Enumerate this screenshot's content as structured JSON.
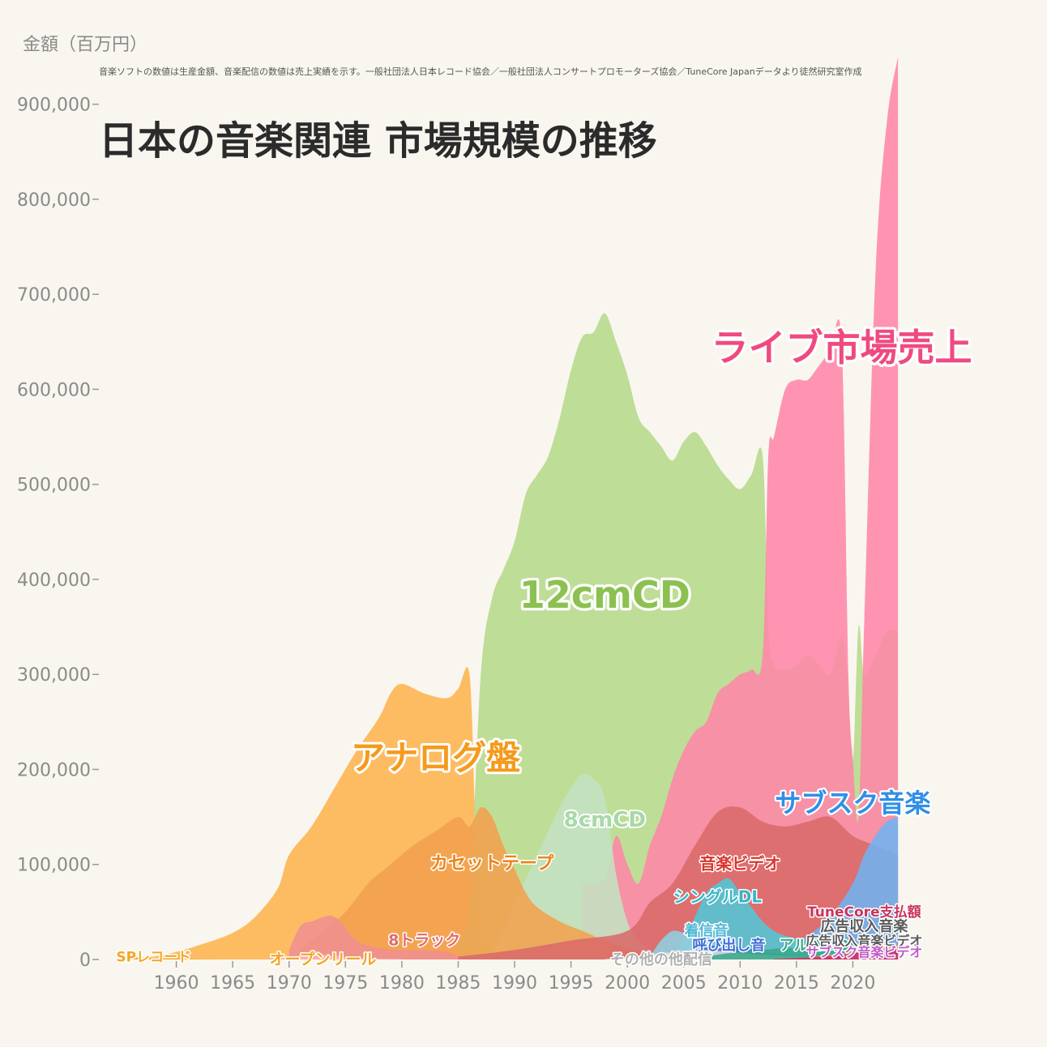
{
  "chart_data": {
    "type": "area",
    "title": "日本の音楽関連 市場規模の推移",
    "subtitle": "音楽ソフトの数値は生産金額、音楽配信の数値は売上実績を示す。一般社団法人日本レコード協会／一般社団法人コンサートプロモーターズ協会／TuneCore Japanデータより徒然研究室作成",
    "ylabel": "金額（百万円）",
    "xlabel": "",
    "xlim": [
      1955,
      2025
    ],
    "ylim": [
      0,
      950000
    ],
    "x_ticks": [
      1960,
      1965,
      1970,
      1975,
      1980,
      1985,
      1990,
      1995,
      2000,
      2005,
      2010,
      2015,
      2020
    ],
    "y_ticks": [
      0,
      100000,
      200000,
      300000,
      400000,
      500000,
      600000,
      700000,
      800000,
      900000
    ],
    "y_tick_labels": [
      "0",
      "100,000",
      "200,000",
      "300,000",
      "400,000",
      "500,000",
      "600,000",
      "700,000",
      "800,000",
      "900,000"
    ],
    "grid": false,
    "legend": "none (direct labels)",
    "series": [
      {
        "name": "アナログ盤",
        "color": "#fdb44e",
        "points": [
          [
            1955,
            0
          ],
          [
            1958,
            3000
          ],
          [
            1960,
            8000
          ],
          [
            1962,
            15000
          ],
          [
            1965,
            28000
          ],
          [
            1967,
            45000
          ],
          [
            1969,
            75000
          ],
          [
            1970,
            110000
          ],
          [
            1972,
            140000
          ],
          [
            1974,
            180000
          ],
          [
            1976,
            220000
          ],
          [
            1978,
            255000
          ],
          [
            1979,
            280000
          ],
          [
            1980,
            290000
          ],
          [
            1982,
            280000
          ],
          [
            1984,
            275000
          ],
          [
            1985,
            285000
          ],
          [
            1986,
            300000
          ],
          [
            1986.5,
            150000
          ],
          [
            1987,
            30000
          ],
          [
            1988,
            15000
          ],
          [
            1990,
            5000
          ],
          [
            1992,
            2000
          ],
          [
            1995,
            1000
          ],
          [
            2000,
            500
          ],
          [
            2010,
            300
          ],
          [
            2020,
            800
          ],
          [
            2024,
            1000
          ]
        ]
      },
      {
        "name": "12cmCD",
        "color": "#b5d98a",
        "points": [
          [
            1985,
            20000
          ],
          [
            1986,
            60000
          ],
          [
            1987,
            300000
          ],
          [
            1988,
            380000
          ],
          [
            1989,
            410000
          ],
          [
            1990,
            440000
          ],
          [
            1991,
            490000
          ],
          [
            1992,
            510000
          ],
          [
            1993,
            530000
          ],
          [
            1994,
            570000
          ],
          [
            1995,
            620000
          ],
          [
            1996,
            655000
          ],
          [
            1997,
            660000
          ],
          [
            1998,
            680000
          ],
          [
            1999,
            650000
          ],
          [
            2000,
            615000
          ],
          [
            2001,
            570000
          ],
          [
            2002,
            555000
          ],
          [
            2003,
            540000
          ],
          [
            2004,
            525000
          ],
          [
            2005,
            545000
          ],
          [
            2006,
            555000
          ],
          [
            2007,
            540000
          ],
          [
            2008,
            520000
          ],
          [
            2009,
            505000
          ],
          [
            2010,
            495000
          ],
          [
            2011,
            510000
          ],
          [
            2012,
            530000
          ],
          [
            2012.5,
            350000
          ],
          [
            2013,
            310000
          ],
          [
            2014,
            305000
          ],
          [
            2015,
            310000
          ],
          [
            2016,
            320000
          ],
          [
            2017,
            310000
          ],
          [
            2018,
            300000
          ],
          [
            2019,
            340000
          ],
          [
            2019.5,
            300000
          ],
          [
            2020,
            210000
          ],
          [
            2020.5,
            350000
          ],
          [
            2021,
            300000
          ],
          [
            2022,
            320000
          ],
          [
            2023,
            345000
          ],
          [
            2024,
            345000
          ]
        ]
      },
      {
        "name": "ライブ市場売上",
        "color": "#fe86a8",
        "points": [
          [
            1996,
            80000
          ],
          [
            1998,
            85000
          ],
          [
            1999,
            130000
          ],
          [
            2000,
            100000
          ],
          [
            2001,
            80000
          ],
          [
            2002,
            120000
          ],
          [
            2003,
            150000
          ],
          [
            2004,
            190000
          ],
          [
            2005,
            220000
          ],
          [
            2006,
            240000
          ],
          [
            2007,
            250000
          ],
          [
            2008,
            280000
          ],
          [
            2009,
            290000
          ],
          [
            2010,
            300000
          ],
          [
            2011,
            305000
          ],
          [
            2012,
            320000
          ],
          [
            2012.5,
            530000
          ],
          [
            2013,
            550000
          ],
          [
            2014,
            600000
          ],
          [
            2015,
            610000
          ],
          [
            2016,
            610000
          ],
          [
            2017,
            625000
          ],
          [
            2018,
            640000
          ],
          [
            2019,
            650000
          ],
          [
            2019.6,
            300000
          ],
          [
            2020,
            210000
          ],
          [
            2020.5,
            150000
          ],
          [
            2021,
            350000
          ],
          [
            2022,
            720000
          ],
          [
            2023,
            880000
          ],
          [
            2024,
            950000
          ]
        ]
      },
      {
        "name": "8cmCD",
        "color": "#c4e1c1",
        "points": [
          [
            1988,
            5000
          ],
          [
            1990,
            60000
          ],
          [
            1992,
            110000
          ],
          [
            1994,
            160000
          ],
          [
            1995,
            180000
          ],
          [
            1996,
            195000
          ],
          [
            1997,
            190000
          ],
          [
            1998,
            170000
          ],
          [
            1999,
            90000
          ],
          [
            2000,
            40000
          ],
          [
            2001,
            20000
          ],
          [
            2002,
            10000
          ],
          [
            2003,
            5000
          ],
          [
            2004,
            2000
          ],
          [
            2006,
            500
          ]
        ]
      },
      {
        "name": "カセットテープ",
        "color": "#f2a14f",
        "points": [
          [
            1971,
            10000
          ],
          [
            1973,
            30000
          ],
          [
            1975,
            50000
          ],
          [
            1977,
            80000
          ],
          [
            1979,
            100000
          ],
          [
            1981,
            120000
          ],
          [
            1983,
            135000
          ],
          [
            1985,
            150000
          ],
          [
            1986,
            140000
          ],
          [
            1987,
            160000
          ],
          [
            1988,
            150000
          ],
          [
            1989,
            120000
          ],
          [
            1990,
            95000
          ],
          [
            1991,
            70000
          ],
          [
            1992,
            55000
          ],
          [
            1994,
            40000
          ],
          [
            1996,
            30000
          ],
          [
            1998,
            20000
          ],
          [
            2000,
            12000
          ],
          [
            2002,
            7000
          ],
          [
            2004,
            3000
          ],
          [
            2006,
            1000
          ]
        ]
      },
      {
        "name": "8トラック",
        "color": "#f08f8f",
        "points": [
          [
            1970,
            10000
          ],
          [
            1971,
            35000
          ],
          [
            1972,
            40000
          ],
          [
            1974,
            45000
          ],
          [
            1976,
            20000
          ],
          [
            1978,
            12000
          ],
          [
            1980,
            10000
          ],
          [
            1982,
            10000
          ],
          [
            1984,
            8000
          ],
          [
            1985,
            4000
          ],
          [
            1986,
            1000
          ]
        ]
      },
      {
        "name": "オープンリール",
        "color": "#ffb0b0",
        "points": [
          [
            1968,
            1000
          ],
          [
            1970,
            3000
          ],
          [
            1972,
            5000
          ],
          [
            1974,
            4000
          ],
          [
            1976,
            2000
          ],
          [
            1978,
            1000
          ],
          [
            1980,
            300
          ]
        ]
      },
      {
        "name": "SPレコード",
        "color": "#f5a623",
        "points": [
          [
            1955,
            3000
          ],
          [
            1957,
            2000
          ],
          [
            1960,
            1000
          ],
          [
            1962,
            300
          ],
          [
            1964,
            0
          ]
        ]
      },
      {
        "name": "音楽ビデオ",
        "color": "#d96a6a",
        "points": [
          [
            1985,
            3000
          ],
          [
            1990,
            10000
          ],
          [
            1995,
            20000
          ],
          [
            2000,
            30000
          ],
          [
            2002,
            60000
          ],
          [
            2004,
            80000
          ],
          [
            2006,
            120000
          ],
          [
            2008,
            155000
          ],
          [
            2010,
            160000
          ],
          [
            2012,
            145000
          ],
          [
            2014,
            140000
          ],
          [
            2016,
            145000
          ],
          [
            2018,
            150000
          ],
          [
            2020,
            130000
          ],
          [
            2022,
            120000
          ],
          [
            2024,
            110000
          ]
        ]
      },
      {
        "name": "サブスク音楽",
        "color": "#6fb4f0",
        "points": [
          [
            2012,
            1000
          ],
          [
            2014,
            10000
          ],
          [
            2016,
            25000
          ],
          [
            2018,
            45000
          ],
          [
            2020,
            80000
          ],
          [
            2021,
            110000
          ],
          [
            2022,
            130000
          ],
          [
            2023,
            145000
          ],
          [
            2024,
            150000
          ]
        ]
      },
      {
        "name": "シングルDL",
        "color": "#52c7d6",
        "points": [
          [
            2004,
            5000
          ],
          [
            2005,
            20000
          ],
          [
            2006,
            45000
          ],
          [
            2007,
            70000
          ],
          [
            2008,
            80000
          ],
          [
            2009,
            85000
          ],
          [
            2010,
            70000
          ],
          [
            2011,
            55000
          ],
          [
            2012,
            40000
          ],
          [
            2013,
            30000
          ],
          [
            2014,
            25000
          ],
          [
            2016,
            20000
          ],
          [
            2018,
            15000
          ],
          [
            2020,
            10000
          ],
          [
            2022,
            8000
          ],
          [
            2024,
            7000
          ]
        ]
      },
      {
        "name": "着信音",
        "color": "#8fd0e0",
        "points": [
          [
            2002,
            3000
          ],
          [
            2003,
            20000
          ],
          [
            2004,
            30000
          ],
          [
            2005,
            28000
          ],
          [
            2006,
            25000
          ],
          [
            2007,
            20000
          ],
          [
            2008,
            15000
          ],
          [
            2009,
            10000
          ],
          [
            2010,
            6000
          ],
          [
            2012,
            2000
          ],
          [
            2014,
            500
          ]
        ]
      },
      {
        "name": "呼び出し音",
        "color": "#3f6fd6",
        "points": [
          [
            2004,
            2000
          ],
          [
            2006,
            10000
          ],
          [
            2008,
            15000
          ],
          [
            2010,
            13000
          ],
          [
            2012,
            8000
          ],
          [
            2014,
            5000
          ],
          [
            2016,
            3000
          ],
          [
            2018,
            1500
          ],
          [
            2020,
            800
          ]
        ]
      },
      {
        "name": "その他の他配信",
        "color": "#dcdcdc",
        "points": [
          [
            1998,
            500
          ],
          [
            2000,
            2000
          ],
          [
            2002,
            5000
          ],
          [
            2004,
            8000
          ],
          [
            2006,
            10000
          ],
          [
            2008,
            9000
          ],
          [
            2010,
            7000
          ],
          [
            2012,
            5000
          ],
          [
            2014,
            4000
          ],
          [
            2016,
            3000
          ],
          [
            2018,
            2500
          ],
          [
            2020,
            2000
          ],
          [
            2022,
            2000
          ],
          [
            2024,
            2000
          ]
        ]
      },
      {
        "name": "アルバムDL",
        "color": "#3aa88a",
        "points": [
          [
            2006,
            1000
          ],
          [
            2008,
            5000
          ],
          [
            2010,
            8000
          ],
          [
            2012,
            10000
          ],
          [
            2014,
            12000
          ],
          [
            2016,
            12000
          ],
          [
            2018,
            11000
          ],
          [
            2020,
            10000
          ],
          [
            2022,
            9000
          ],
          [
            2024,
            8000
          ]
        ]
      },
      {
        "name": "広告収入音楽",
        "color": "#ff9f4a",
        "points": [
          [
            2016,
            2000
          ],
          [
            2018,
            5000
          ],
          [
            2020,
            8000
          ],
          [
            2022,
            12000
          ],
          [
            2024,
            15000
          ]
        ]
      },
      {
        "name": "広告収入音楽ビデオ",
        "color": "#8ab4d9",
        "points": [
          [
            2016,
            1000
          ],
          [
            2018,
            3000
          ],
          [
            2020,
            5000
          ],
          [
            2022,
            7000
          ],
          [
            2024,
            9000
          ]
        ]
      },
      {
        "name": "サブスク音楽ビデオ",
        "color": "#c15ac9",
        "points": [
          [
            2016,
            1000
          ],
          [
            2018,
            3000
          ],
          [
            2020,
            6000
          ],
          [
            2022,
            8000
          ],
          [
            2024,
            10000
          ]
        ]
      },
      {
        "name": "TuneCore支払額",
        "color": "#c9355e",
        "points": [
          [
            2013,
            500
          ],
          [
            2015,
            1500
          ],
          [
            2017,
            3000
          ],
          [
            2019,
            5000
          ],
          [
            2021,
            8000
          ],
          [
            2023,
            10000
          ],
          [
            2024,
            11000
          ]
        ]
      }
    ]
  }
}
